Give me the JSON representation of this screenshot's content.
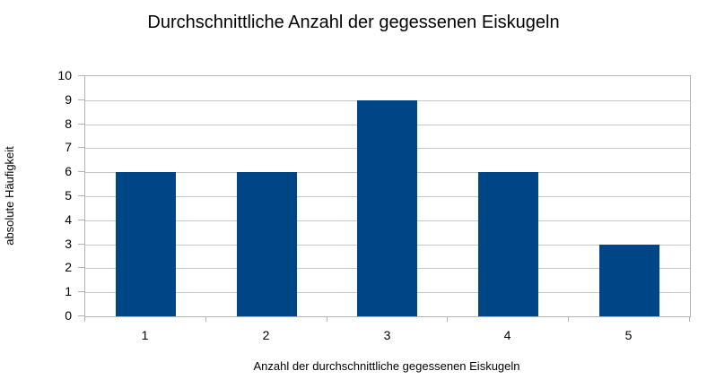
{
  "chart_data": {
    "type": "bar",
    "title": "Durchschnittliche Anzahl der gegessenen Eiskugeln",
    "xlabel": "Anzahl der durchschnittliche gegessenen Eiskugeln",
    "ylabel": "absolute Häufigkeit",
    "categories": [
      "1",
      "2",
      "3",
      "4",
      "5"
    ],
    "values": [
      6,
      6,
      9,
      6,
      3
    ],
    "ylim": [
      0,
      10
    ],
    "ytick_step": 1,
    "grid": "horizontal",
    "legend": "none",
    "colors": {
      "bar": "#004586",
      "gridline": "#c6c6c6",
      "axis": "#b3b3b3",
      "text": "#000000",
      "background": "#ffffff"
    }
  }
}
